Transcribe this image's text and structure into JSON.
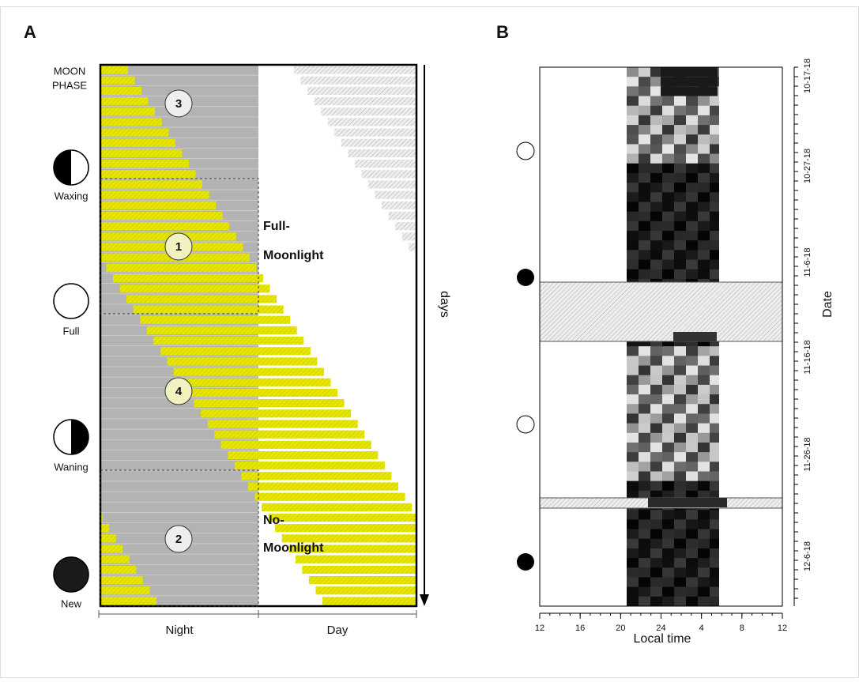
{
  "panel_a": {
    "label": "A",
    "moon_phase_header": [
      "MOON",
      "PHASE"
    ],
    "phases": [
      "Waxing",
      "Full",
      "Waning",
      "New"
    ],
    "regions": [
      "3",
      "1",
      "4",
      "2"
    ],
    "full_moonlight": [
      "Full-",
      "Moonlight"
    ],
    "no_moonlight": [
      "No-",
      "Moonlight"
    ],
    "axis_label": "days",
    "bottom_labels": [
      "Night",
      "Day"
    ]
  },
  "panel_b": {
    "label": "B",
    "x_ticks": [
      "12",
      "16",
      "20",
      "24",
      "4",
      "8",
      "12"
    ],
    "x_label": "Local time",
    "y_label": "Date",
    "dates": [
      "10-17-18",
      "10-27-18",
      "11-6-18",
      "11-16-18",
      "11-26-18",
      "12-6-18"
    ]
  }
}
